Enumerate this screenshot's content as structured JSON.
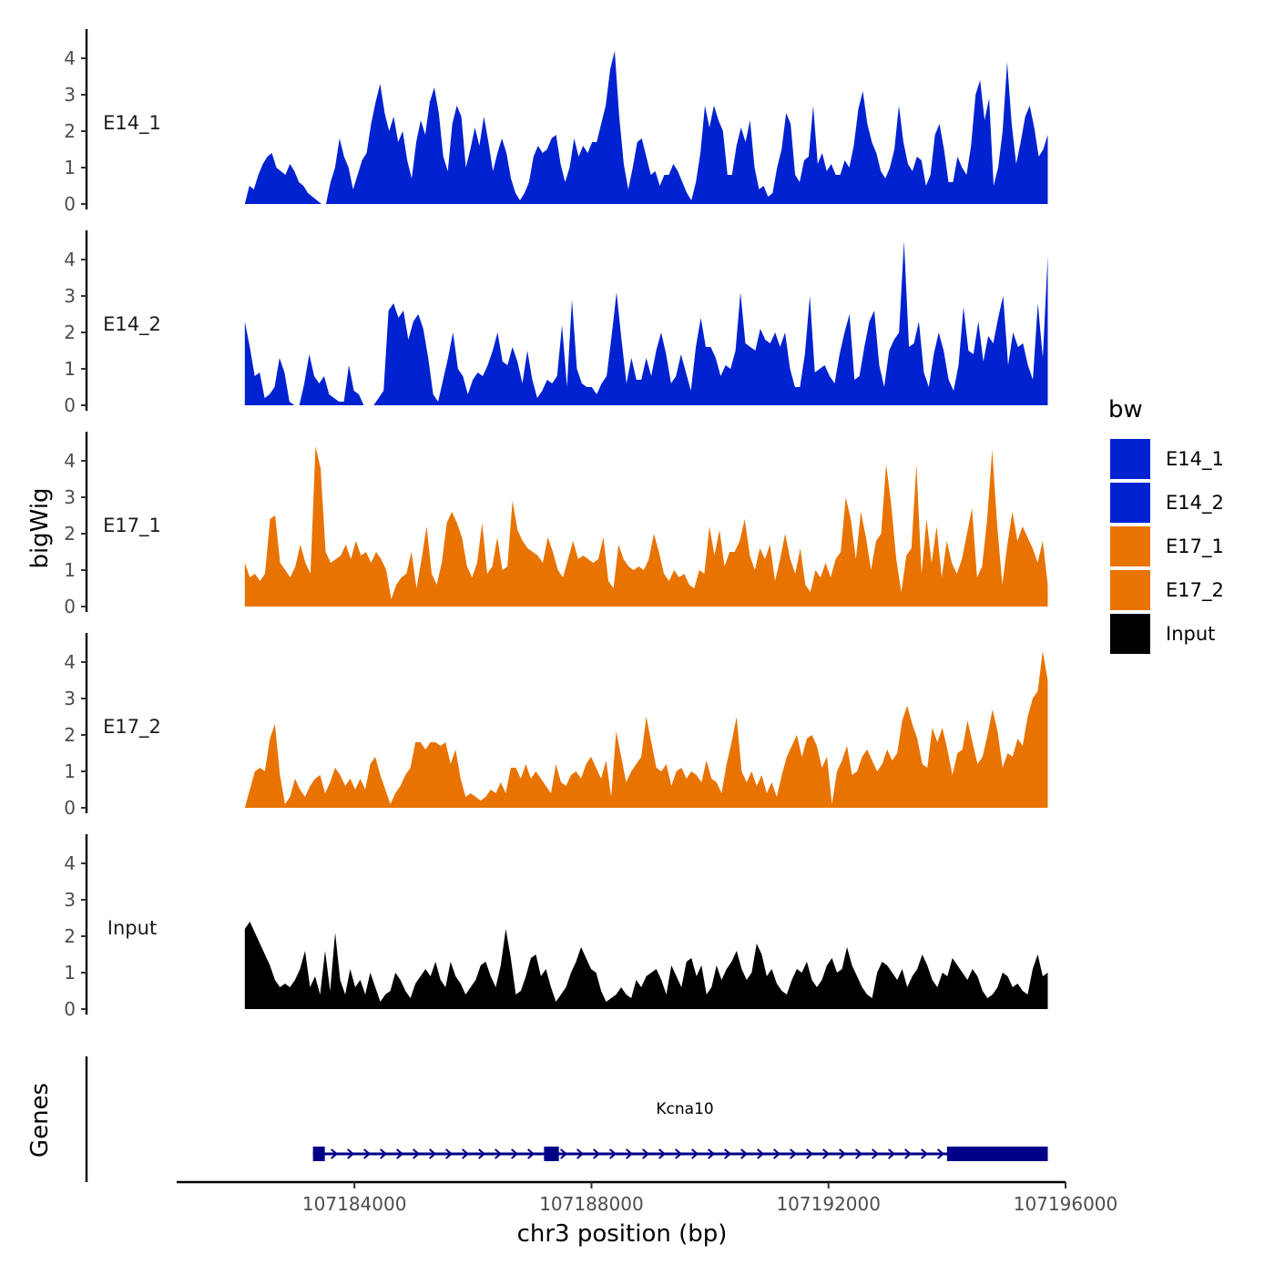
{
  "chart_data": {
    "type": "area",
    "title": "",
    "xlabel": "chr3 position (bp)",
    "ylabel": "bigWig",
    "xlim": [
      107181000,
      107196000
    ],
    "ylim": [
      0,
      4.8
    ],
    "x_ticks": [
      107184000,
      107188000,
      107192000,
      107196000
    ],
    "x_tick_labels": [
      "107184000",
      "107188000",
      "107192000",
      "107196000"
    ],
    "y_ticks": [
      0,
      1,
      2,
      3,
      4
    ],
    "y_tick_labels": [
      "0",
      "1",
      "2",
      "3",
      "4"
    ],
    "track_start": 107182150,
    "track_end": 107195700,
    "colors": {
      "E14_1": "#0022d0",
      "E14_2": "#0022d0",
      "E17_1": "#e87300",
      "E17_2": "#e87300",
      "Input": "#000000"
    },
    "series": [
      {
        "name": "E14_1",
        "values": [
          0,
          0.5,
          0.4,
          0.8,
          1.1,
          1.3,
          1.4,
          1.0,
          0.9,
          0.8,
          1.1,
          0.9,
          0.6,
          0.5,
          0.3,
          0.2,
          0.1,
          0,
          0,
          0.6,
          1.0,
          1.8,
          1.3,
          1.0,
          0.4,
          0.8,
          1.2,
          1.4,
          2.2,
          2.8,
          3.3,
          2.5,
          2.0,
          2.4,
          1.7,
          2.0,
          1.2,
          0.7,
          1.7,
          2.3,
          1.9,
          2.8,
          3.2,
          2.5,
          1.3,
          0.9,
          2.2,
          2.7,
          2.4,
          1.0,
          1.5,
          2.1,
          1.6,
          2.4,
          1.7,
          0.9,
          1.4,
          1.8,
          1.4,
          0.7,
          0.3,
          0.1,
          0.3,
          0.6,
          1.3,
          1.6,
          1.4,
          1.5,
          1.8,
          1.9,
          1.1,
          0.6,
          1.0,
          1.8,
          1.3,
          1.6,
          1.4,
          1.7,
          1.7,
          2.2,
          2.7,
          3.7,
          4.2,
          2.4,
          1.1,
          0.4,
          1.0,
          1.7,
          1.8,
          1.3,
          0.8,
          0.9,
          0.5,
          0.8,
          0.8,
          1.1,
          0.9,
          0.6,
          0.3,
          0.1,
          0.6,
          1.4,
          2.7,
          2.1,
          2.7,
          2.3,
          2.0,
          0.8,
          0.8,
          1.6,
          2.1,
          1.7,
          2.3,
          1.0,
          0.4,
          0.5,
          0.2,
          0.3,
          1.0,
          1.5,
          2.5,
          2.2,
          0.8,
          0.6,
          1.2,
          1.3,
          2.7,
          1.1,
          1.4,
          0.9,
          1.1,
          0.8,
          0.8,
          1.2,
          1.0,
          1.6,
          2.6,
          3.1,
          2.2,
          1.7,
          1.4,
          0.9,
          0.7,
          1.0,
          1.5,
          2.7,
          1.7,
          1.1,
          0.9,
          1.3,
          1.2,
          0.5,
          0.8,
          1.9,
          2.2,
          1.5,
          0.6,
          0.6,
          1.3,
          1.0,
          0.8,
          1.6,
          3.0,
          3.4,
          2.3,
          2.9,
          0.5,
          1.0,
          2.0,
          3.9,
          2.2,
          1.1,
          1.7,
          2.4,
          2.7,
          2.1,
          1.3,
          1.5,
          1.9
        ]
      },
      {
        "name": "E14_2",
        "values": [
          2.3,
          1.6,
          0.8,
          0.9,
          0.2,
          0.3,
          0.5,
          1.3,
          0.9,
          0.1,
          0,
          0,
          0.6,
          1.4,
          0.8,
          0.6,
          0.8,
          0.3,
          0.2,
          0.1,
          0.1,
          1.1,
          0.4,
          0.3,
          0,
          0,
          0,
          0.2,
          0.4,
          2.6,
          2.8,
          2.4,
          2.6,
          1.8,
          2.3,
          2.5,
          2.1,
          1.3,
          0.3,
          0.1,
          0.7,
          1.3,
          2.0,
          1.0,
          0.8,
          0.3,
          0.7,
          0.9,
          0.8,
          1.1,
          1.5,
          2.0,
          1.2,
          1.1,
          1.6,
          1.2,
          0.6,
          1.5,
          0.7,
          0.2,
          0.4,
          0.7,
          0.6,
          0.8,
          2.2,
          0.5,
          2.9,
          1.0,
          0.6,
          0.5,
          0.5,
          0.3,
          0.6,
          0.8,
          1.9,
          3.1,
          1.8,
          0.6,
          1.3,
          0.7,
          0.7,
          1.3,
          0.8,
          1.5,
          2.0,
          1.4,
          0.6,
          0.8,
          1.4,
          0.9,
          0.4,
          1.6,
          2.4,
          1.6,
          1.6,
          1.3,
          0.8,
          1.1,
          1.0,
          1.5,
          3.1,
          1.7,
          1.6,
          1.5,
          2.1,
          1.8,
          1.7,
          2.0,
          1.6,
          2.0,
          1.0,
          0.5,
          0.5,
          1.4,
          3.0,
          0.9,
          1.0,
          1.1,
          0.8,
          0.6,
          1.4,
          2.0,
          2.5,
          0.7,
          0.8,
          1.6,
          2.3,
          2.6,
          1.1,
          0.5,
          1.5,
          1.8,
          2.0,
          4.5,
          1.6,
          1.7,
          2.3,
          0.9,
          0.5,
          1.4,
          2.0,
          1.5,
          0.7,
          0.4,
          1.1,
          2.7,
          1.5,
          1.4,
          2.3,
          1.2,
          1.9,
          1.7,
          2.4,
          3.0,
          1.1,
          2.0,
          1.6,
          1.7,
          1.1,
          0.7,
          2.8,
          1.3,
          4.1
        ]
      },
      {
        "name": "E17_1",
        "values": [
          1.2,
          0.8,
          0.9,
          0.7,
          0.9,
          2.4,
          2.5,
          1.2,
          1.0,
          0.8,
          1.1,
          1.7,
          1.2,
          0.9,
          4.4,
          3.8,
          1.5,
          1.2,
          1.3,
          1.4,
          1.7,
          1.3,
          1.8,
          1.4,
          1.5,
          1.2,
          1.5,
          1.3,
          1.0,
          0.2,
          0.6,
          0.8,
          0.9,
          1.5,
          0.5,
          1.3,
          2.2,
          0.9,
          0.6,
          1.2,
          2.3,
          2.6,
          2.3,
          1.9,
          1.1,
          0.8,
          1.2,
          2.3,
          0.9,
          1.1,
          1.9,
          1.0,
          1.1,
          2.9,
          2.1,
          1.8,
          1.6,
          1.5,
          1.4,
          1.2,
          1.9,
          1.5,
          1.0,
          0.8,
          1.3,
          1.8,
          1.3,
          1.4,
          1.3,
          1.2,
          1.3,
          1.9,
          0.7,
          0.5,
          1.7,
          1.3,
          1.1,
          1.0,
          1.1,
          1.0,
          1.3,
          2.0,
          1.5,
          0.9,
          0.7,
          1.0,
          0.8,
          0.9,
          0.6,
          0.5,
          1.0,
          0.9,
          2.2,
          1.4,
          2.1,
          1.1,
          1.5,
          1.5,
          1.8,
          2.4,
          1.4,
          1.0,
          1.6,
          1.3,
          1.7,
          0.7,
          1.3,
          2.0,
          1.3,
          0.9,
          1.6,
          0.6,
          0.4,
          1.0,
          0.8,
          1.2,
          0.8,
          1.3,
          1.5,
          3.0,
          2.4,
          1.3,
          2.6,
          1.9,
          1.0,
          1.8,
          2.0,
          3.9,
          2.8,
          1.3,
          0.4,
          1.4,
          1.6,
          3.9,
          0.9,
          2.4,
          1.2,
          2.2,
          0.8,
          1.8,
          1.2,
          0.9,
          1.3,
          2.0,
          2.7,
          0.8,
          1.1,
          2.4,
          4.3,
          2.2,
          0.6,
          1.7,
          2.6,
          1.8,
          2.2,
          1.9,
          1.6,
          1.2,
          1.8,
          0.6
        ]
      },
      {
        "name": "E17_2",
        "values": [
          0,
          0.5,
          1.0,
          1.1,
          1.0,
          1.9,
          2.3,
          0.9,
          0.1,
          0.3,
          0.8,
          0.5,
          0.3,
          0.6,
          0.8,
          0.9,
          0.4,
          0.7,
          1.1,
          0.9,
          0.6,
          0.8,
          0.5,
          0.8,
          0.5,
          1.2,
          1.4,
          0.9,
          0.5,
          0.1,
          0.4,
          0.6,
          0.9,
          1.1,
          1.8,
          1.8,
          1.6,
          1.8,
          1.8,
          1.7,
          1.8,
          1.2,
          1.6,
          0.8,
          0.3,
          0.4,
          0.3,
          0.2,
          0.3,
          0.5,
          0.4,
          0.7,
          0.4,
          1.1,
          1.1,
          0.8,
          1.2,
          0.8,
          1.0,
          0.8,
          0.6,
          0.4,
          1.2,
          0.7,
          0.6,
          0.9,
          1.0,
          0.8,
          1.2,
          1.4,
          1.1,
          0.8,
          1.3,
          0.3,
          2.1,
          1.4,
          0.7,
          1.0,
          1.2,
          1.4,
          2.5,
          1.8,
          1.1,
          1.0,
          1.2,
          0.6,
          1.0,
          1.1,
          0.8,
          1.0,
          0.9,
          0.7,
          1.3,
          0.8,
          0.7,
          0.4,
          1.2,
          1.8,
          2.5,
          1.0,
          0.7,
          1.0,
          0.6,
          0.9,
          0.4,
          0.7,
          0.3,
          0.9,
          1.4,
          1.7,
          2.0,
          1.4,
          1.9,
          2.0,
          1.7,
          1.1,
          1.4,
          0.1,
          1.0,
          1.3,
          1.7,
          0.9,
          1.0,
          1.4,
          1.6,
          1.3,
          1.0,
          1.2,
          1.6,
          1.3,
          1.5,
          2.4,
          2.8,
          2.3,
          1.9,
          1.2,
          1.1,
          2.2,
          1.8,
          2.2,
          1.6,
          0.9,
          1.5,
          1.6,
          2.4,
          1.8,
          1.2,
          1.4,
          2.0,
          2.7,
          2.1,
          1.1,
          1.5,
          1.4,
          1.9,
          1.7,
          2.5,
          3.0,
          3.2,
          4.3,
          3.5
        ]
      },
      {
        "name": "Input",
        "values": [
          2.2,
          2.4,
          2.1,
          1.8,
          1.5,
          1.2,
          0.8,
          0.6,
          0.7,
          0.6,
          0.8,
          1.1,
          1.6,
          0.6,
          0.9,
          0.4,
          1.6,
          0.5,
          2.1,
          0.8,
          0.4,
          1.1,
          0.6,
          0.8,
          0.4,
          1.0,
          0.6,
          0.2,
          0.4,
          0.5,
          1.0,
          0.8,
          0.5,
          0.3,
          0.7,
          0.9,
          1.1,
          0.9,
          1.3,
          0.8,
          0.6,
          1.3,
          0.9,
          0.7,
          0.4,
          0.6,
          0.8,
          1.2,
          1.3,
          0.9,
          0.6,
          1.2,
          2.2,
          1.4,
          0.4,
          0.5,
          0.9,
          1.4,
          1.5,
          0.9,
          1.1,
          0.6,
          0.2,
          0.4,
          0.6,
          1.0,
          1.3,
          1.7,
          1.4,
          1.1,
          1.0,
          0.5,
          0.2,
          0.3,
          0.4,
          0.6,
          0.4,
          0.3,
          0.8,
          0.6,
          0.9,
          1.0,
          1.1,
          0.8,
          0.4,
          1.2,
          0.9,
          0.6,
          1.3,
          1.4,
          0.9,
          1.2,
          0.4,
          0.6,
          1.2,
          0.8,
          1.1,
          1.3,
          1.6,
          1.1,
          0.8,
          1.0,
          1.8,
          1.5,
          0.9,
          1.1,
          0.7,
          0.5,
          0.4,
          0.8,
          1.1,
          1.0,
          1.3,
          0.8,
          0.6,
          0.8,
          1.2,
          1.4,
          1.0,
          1.1,
          1.7,
          1.2,
          0.9,
          0.6,
          0.4,
          0.3,
          1.0,
          1.3,
          1.2,
          1.0,
          0.8,
          1.1,
          0.6,
          0.9,
          1.1,
          1.5,
          1.2,
          0.8,
          0.6,
          1.0,
          0.9,
          1.4,
          1.2,
          1.0,
          0.8,
          1.1,
          0.9,
          0.5,
          0.3,
          0.4,
          0.6,
          1.0,
          0.9,
          0.6,
          0.7,
          0.5,
          0.4,
          1.1,
          1.5,
          0.9,
          1.0
        ]
      }
    ],
    "gene_track": {
      "label": "Genes",
      "gene_name": "Kcna10",
      "strand": "+",
      "start": 107183300,
      "end": 107195700,
      "exons": [
        {
          "start": 107183300,
          "end": 107183500
        },
        {
          "start": 107187200,
          "end": 107187450
        },
        {
          "start": 107194000,
          "end": 107195700
        }
      ]
    },
    "legend": {
      "title": "bw",
      "position": "right",
      "entries": [
        {
          "label": "E14_1",
          "color": "#0022d0"
        },
        {
          "label": "E14_2",
          "color": "#0022d0"
        },
        {
          "label": "E17_1",
          "color": "#e87300"
        },
        {
          "label": "E17_2",
          "color": "#e87300"
        },
        {
          "label": "Input",
          "color": "#000000"
        }
      ]
    },
    "grid": false
  }
}
